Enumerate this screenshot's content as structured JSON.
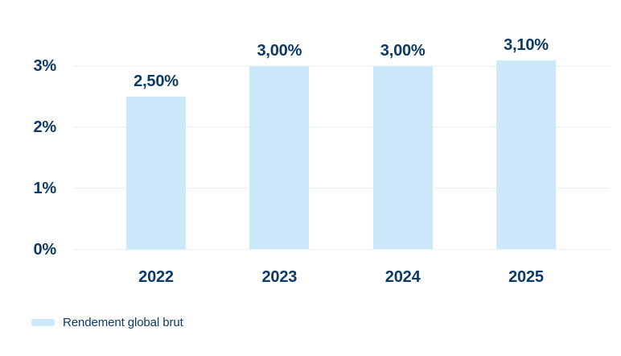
{
  "colors": {
    "background": "#ffffff",
    "bar": "#cce9fb",
    "grid": "#e8eef5",
    "text": "#0d3a66"
  },
  "chart_data": {
    "type": "bar",
    "title": "",
    "categories": [
      "2022",
      "2023",
      "2024",
      "2025"
    ],
    "series": [
      {
        "name": "Rendement global brut",
        "values": [
          2.5,
          3.0,
          3.0,
          3.1
        ]
      }
    ],
    "bar_labels": [
      "2,50%",
      "3,00%",
      "3,00%",
      "3,10%"
    ],
    "y_ticks": [
      {
        "label": "0%",
        "value": 0
      },
      {
        "label": "1%",
        "value": 1
      },
      {
        "label": "2%",
        "value": 2
      },
      {
        "label": "3%",
        "value": 3
      }
    ],
    "ylim": [
      0,
      3.1
    ],
    "grid": true,
    "legend": {
      "position": "bottom-left",
      "items": [
        {
          "label": "Rendement global brut",
          "swatch_color": "#cce9fb"
        }
      ]
    }
  }
}
